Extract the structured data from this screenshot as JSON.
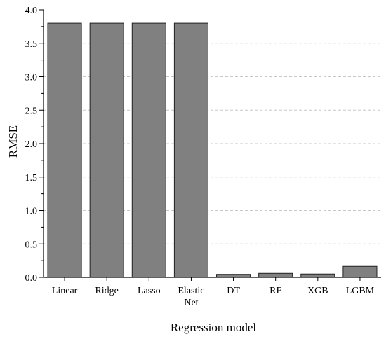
{
  "chart_data": {
    "type": "bar",
    "title": "",
    "xlabel": "Regression model",
    "ylabel": "RMSE",
    "categories": [
      [
        "Linear"
      ],
      [
        "Ridge"
      ],
      [
        "Lasso"
      ],
      [
        "Elastic",
        "Net"
      ],
      [
        "DT"
      ],
      [
        "RF"
      ],
      [
        "XGB"
      ],
      [
        "LGBM"
      ]
    ],
    "values": [
      3.8,
      3.8,
      3.8,
      3.8,
      0.045,
      0.06,
      0.05,
      0.165
    ],
    "ylim": [
      0,
      4.0
    ],
    "yticks": [
      "0.0",
      "0.5",
      "1.0",
      "1.5",
      "2.0",
      "2.5",
      "3.0",
      "3.5",
      "4.0"
    ],
    "grid": "horizontal dashed",
    "legend": "none",
    "colors": {
      "bar_fill": "#808080",
      "bar_stroke": "#222222",
      "grid": "#c8c8c8",
      "axis": "#000000"
    }
  }
}
